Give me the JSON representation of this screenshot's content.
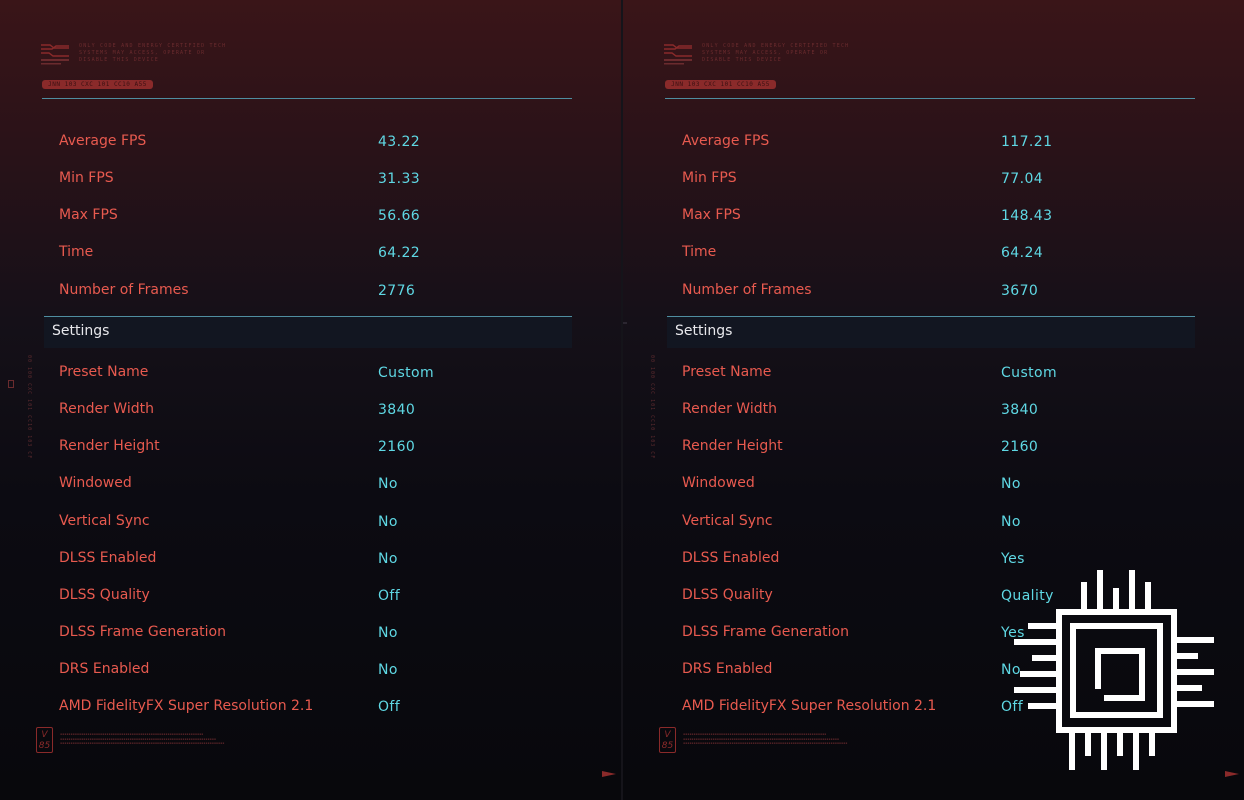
{
  "header": {
    "notice_lines": [
      "ONLY CODE AND ENERGY CERTIFIED TECH",
      "SYSTEMS MAY ACCESS, OPERATE OR",
      "DISABLE THIS DEVICE"
    ],
    "badge_code": "JNN 103 CXC 101 CC10 A55"
  },
  "settings_header": "Settings",
  "footer": {
    "version_badge_top": "V",
    "version_badge_bottom": "85",
    "side_code": "00 100 CXC 101 CC10 103 CF"
  },
  "panels": [
    {
      "stats": [
        {
          "label": "Average FPS",
          "value": "43.22"
        },
        {
          "label": "Min FPS",
          "value": "31.33"
        },
        {
          "label": "Max FPS",
          "value": "56.66"
        },
        {
          "label": "Time",
          "value": "64.22"
        },
        {
          "label": "Number of Frames",
          "value": "2776"
        }
      ],
      "settings": [
        {
          "label": "Preset Name",
          "value": "Custom"
        },
        {
          "label": "Render Width",
          "value": "3840"
        },
        {
          "label": "Render Height",
          "value": "2160"
        },
        {
          "label": "Windowed",
          "value": "No"
        },
        {
          "label": "Vertical Sync",
          "value": "No"
        },
        {
          "label": "DLSS Enabled",
          "value": "No"
        },
        {
          "label": "DLSS Quality",
          "value": "Off"
        },
        {
          "label": "DLSS Frame Generation",
          "value": "No"
        },
        {
          "label": "DRS Enabled",
          "value": "No"
        },
        {
          "label": "AMD FidelityFX Super Resolution 2.1",
          "value": "Off"
        }
      ]
    },
    {
      "stats": [
        {
          "label": "Average FPS",
          "value": "117.21"
        },
        {
          "label": "Min FPS",
          "value": "77.04"
        },
        {
          "label": "Max FPS",
          "value": "148.43"
        },
        {
          "label": "Time",
          "value": "64.24"
        },
        {
          "label": "Number of Frames",
          "value": "3670"
        }
      ],
      "settings": [
        {
          "label": "Preset Name",
          "value": "Custom"
        },
        {
          "label": "Render Width",
          "value": "3840"
        },
        {
          "label": "Render Height",
          "value": "2160"
        },
        {
          "label": "Windowed",
          "value": "No"
        },
        {
          "label": "Vertical Sync",
          "value": "No"
        },
        {
          "label": "DLSS Enabled",
          "value": "Yes"
        },
        {
          "label": "DLSS Quality",
          "value": "Quality"
        },
        {
          "label": "DLSS Frame Generation",
          "value": "Yes"
        },
        {
          "label": "DRS Enabled",
          "value": "No"
        },
        {
          "label": "AMD FidelityFX Super Resolution 2.1",
          "value": "Off"
        }
      ]
    }
  ],
  "watermark_icon": "chip-icon",
  "colors": {
    "label": "#e85a4f",
    "value": "#5fd8e4",
    "accent_line": "#4f8ea0",
    "brand_red": "#8a2a2a"
  }
}
